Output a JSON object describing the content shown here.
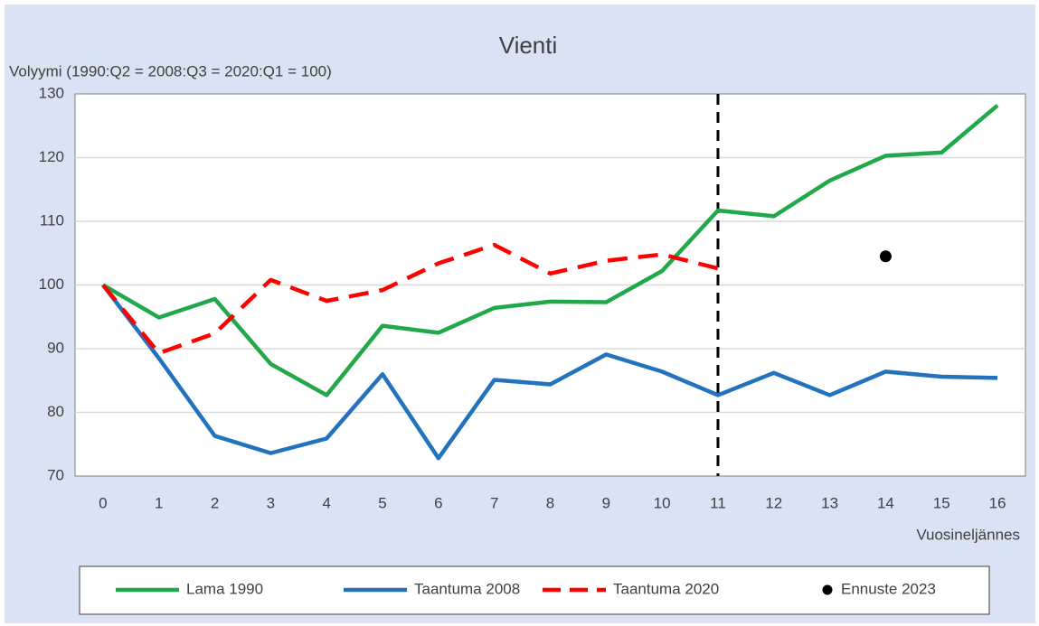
{
  "chart_data": {
    "type": "line",
    "title": "Vienti",
    "y_label": "Volyymi (1990:Q2 = 2008:Q3 = 2020:Q1 = 100)",
    "x_label": "Vuosineljännes",
    "x": [
      0,
      1,
      2,
      3,
      4,
      5,
      6,
      7,
      8,
      9,
      10,
      11,
      12,
      13,
      14,
      15,
      16
    ],
    "xlim": [
      -0.5,
      16.5
    ],
    "xticks": [
      0,
      1,
      2,
      3,
      4,
      5,
      6,
      7,
      8,
      9,
      10,
      11,
      12,
      13,
      14,
      15,
      16
    ],
    "ylim": [
      70,
      130
    ],
    "yticks": [
      70,
      80,
      90,
      100,
      110,
      120,
      130
    ],
    "grid": true,
    "vline": 11,
    "legend": "bottom",
    "series": [
      {
        "name": "Lama 1990",
        "color": "#21a84a",
        "style": "solid",
        "values": [
          100,
          94.9,
          97.8,
          87.6,
          82.7,
          93.6,
          92.5,
          96.4,
          97.4,
          97.3,
          102.2,
          111.7,
          110.8,
          116.4,
          120.3,
          120.8,
          128.2
        ]
      },
      {
        "name": "Taantuma 2008",
        "color": "#2272bd",
        "style": "solid",
        "values": [
          100,
          88.5,
          76.3,
          73.6,
          75.9,
          86.0,
          72.8,
          85.1,
          84.4,
          89.1,
          86.4,
          82.7,
          86.2,
          82.7,
          86.4,
          85.6,
          85.4
        ]
      },
      {
        "name": "Taantuma 2020",
        "color": "#ff0000",
        "style": "dashed",
        "values": [
          100,
          89.3,
          92.4,
          100.8,
          97.5,
          99.2,
          103.4,
          106.3,
          101.8,
          103.8,
          104.8,
          102.6,
          null,
          null,
          null,
          null,
          null
        ]
      },
      {
        "name": "Ennuste 2023",
        "color": "#000000",
        "style": "point",
        "values": [
          null,
          null,
          null,
          null,
          null,
          null,
          null,
          null,
          null,
          null,
          null,
          null,
          null,
          null,
          104.5,
          null,
          null
        ]
      }
    ]
  }
}
